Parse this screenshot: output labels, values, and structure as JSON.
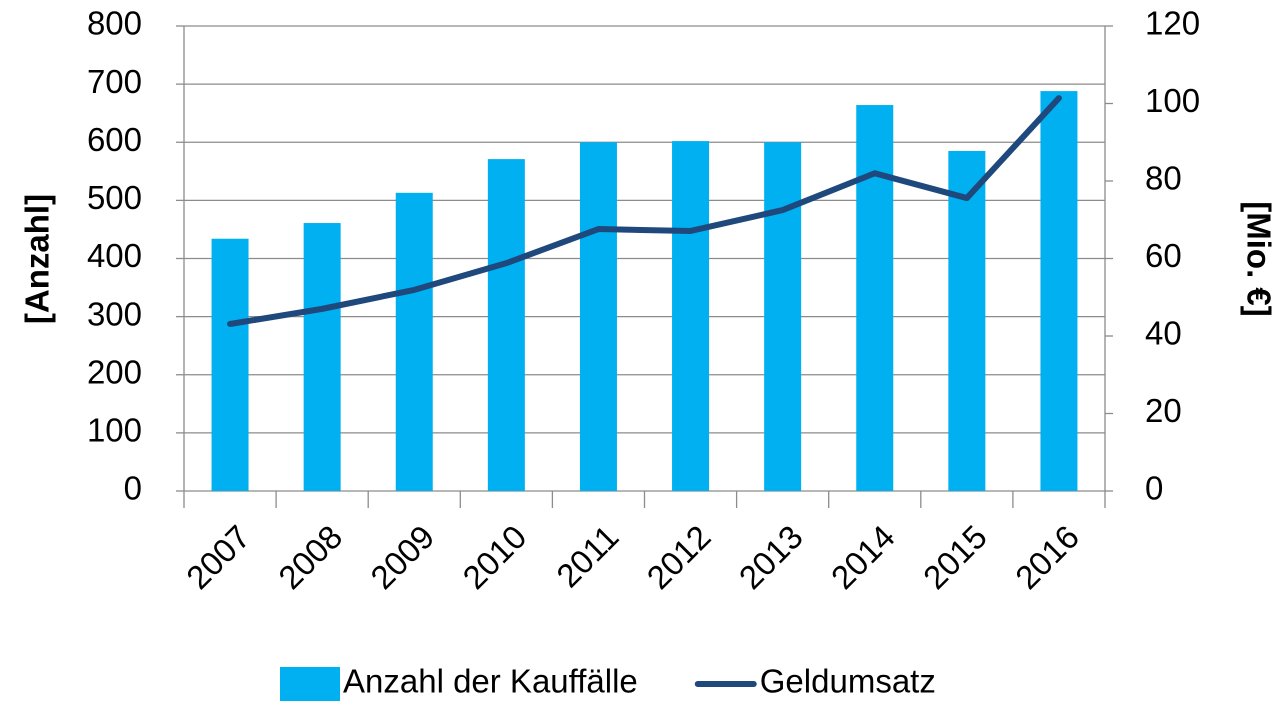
{
  "chart_data": {
    "type": "bar",
    "categories": [
      "2007",
      "2008",
      "2009",
      "2010",
      "2011",
      "2012",
      "2013",
      "2014",
      "2015",
      "2016"
    ],
    "series": [
      {
        "name": "Anzahl der Kauffälle",
        "type": "bar",
        "color": "#00b0f0",
        "values": [
          434,
          461,
          513,
          571,
          600,
          602,
          600,
          664,
          585,
          688
        ]
      },
      {
        "name": "Geldumsatz",
        "type": "line",
        "axis": "y2",
        "color": "#1f497d",
        "values": [
          43.1,
          47,
          51.9,
          58.8,
          67.6,
          67.1,
          72.5,
          82,
          75.6,
          101.4
        ]
      }
    ],
    "ylabel": "[Anzahl]",
    "y2label": "[Mio. €]",
    "ylim": [
      0,
      800
    ],
    "yticks": [
      0,
      100,
      200,
      300,
      400,
      500,
      600,
      700,
      800
    ],
    "y2lim": [
      0,
      120
    ],
    "y2ticks": [
      0,
      20,
      40,
      60,
      80,
      100,
      120
    ],
    "grid": true,
    "legend": "bottom"
  }
}
